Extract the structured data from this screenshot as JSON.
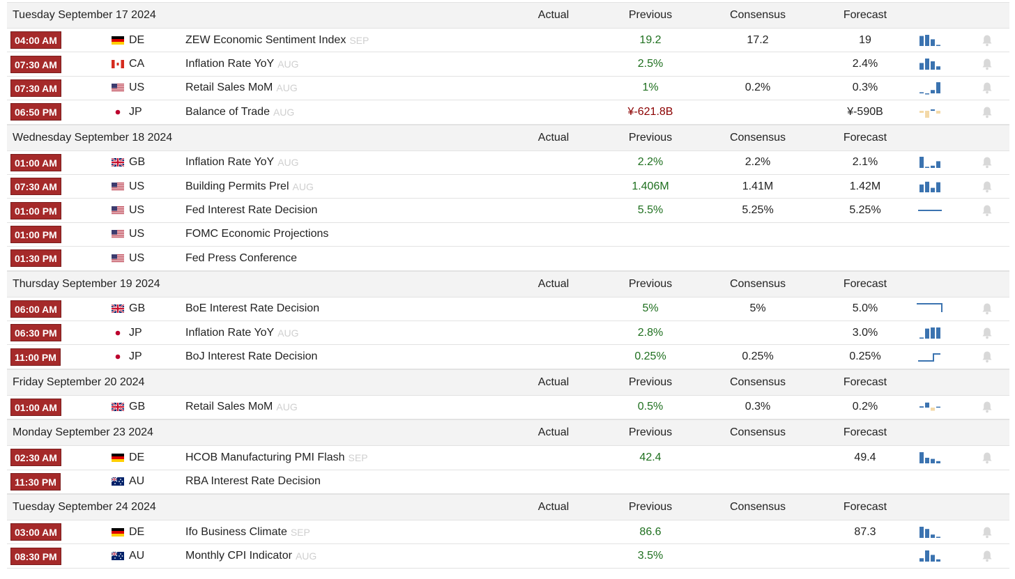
{
  "columns": {
    "actual": "Actual",
    "previous": "Previous",
    "consensus": "Consensus",
    "forecast": "Forecast"
  },
  "groups": [
    {
      "date": "Tuesday September 17 2024",
      "rows": [
        {
          "time": "04:00 AM",
          "country": "DE",
          "flag": "de",
          "event": "ZEW Economic Sentiment Index",
          "ref": "SEP",
          "previous": "19.2",
          "prev_color": "green",
          "consensus": "17.2",
          "forecast": "19",
          "spark": "bars",
          "spark_values": [
            0.9,
            1.0,
            0.6,
            0.1
          ],
          "spark_color": "#3b73b0"
        },
        {
          "time": "07:30 AM",
          "country": "CA",
          "flag": "ca",
          "event": "Inflation Rate YoY",
          "ref": "AUG",
          "previous": "2.5%",
          "prev_color": "green",
          "consensus": "",
          "forecast": "2.4%",
          "spark": "bars",
          "spark_values": [
            0.6,
            1.0,
            0.75,
            0.3
          ],
          "spark_color": "#3b73b0"
        },
        {
          "time": "07:30 AM",
          "country": "US",
          "flag": "us",
          "event": "Retail Sales MoM",
          "ref": "AUG",
          "previous": "1%",
          "prev_color": "green",
          "consensus": "0.2%",
          "forecast": "0.3%",
          "spark": "bars",
          "spark_values": [
            0.1,
            0.0,
            0.3,
            1.0
          ],
          "spark_color": "#3b73b0"
        },
        {
          "time": "06:50 PM",
          "country": "JP",
          "flag": "jp",
          "event": "Balance of Trade",
          "ref": "AUG",
          "previous": "¥-621.8B",
          "prev_color": "red",
          "consensus": "",
          "forecast": "¥-590B",
          "spark": "neg",
          "spark_values": [
            -0.3,
            -1.0,
            0.2,
            -0.4
          ],
          "spark_color": "#f3d9a8"
        }
      ]
    },
    {
      "date": "Wednesday September 18 2024",
      "rows": [
        {
          "time": "01:00 AM",
          "country": "GB",
          "flag": "gb",
          "event": "Inflation Rate YoY",
          "ref": "AUG",
          "previous": "2.2%",
          "prev_color": "green",
          "consensus": "2.2%",
          "forecast": "2.1%",
          "spark": "bars",
          "spark_values": [
            1.0,
            0.1,
            0.2,
            0.6
          ],
          "spark_color": "#3b73b0"
        },
        {
          "time": "07:30 AM",
          "country": "US",
          "flag": "us",
          "event": "Building Permits Prel",
          "ref": "AUG",
          "previous": "1.406M",
          "prev_color": "green",
          "consensus": "1.41M",
          "forecast": "1.42M",
          "spark": "bars",
          "spark_values": [
            0.7,
            0.95,
            0.4,
            0.9
          ],
          "spark_color": "#3b73b0"
        },
        {
          "time": "01:00 PM",
          "country": "US",
          "flag": "us",
          "event": "Fed Interest Rate Decision",
          "ref": "",
          "previous": "5.5%",
          "prev_color": "green",
          "consensus": "5.25%",
          "forecast": "5.25%",
          "spark": "flat",
          "spark_values": [
            0.5,
            0.5
          ],
          "spark_color": "#3b73b0"
        },
        {
          "time": "01:00 PM",
          "country": "US",
          "flag": "us",
          "event": "FOMC Economic Projections",
          "ref": "",
          "previous": "",
          "prev_color": "green",
          "consensus": "",
          "forecast": "",
          "spark": "",
          "spark_values": [],
          "spark_color": ""
        },
        {
          "time": "01:30 PM",
          "country": "US",
          "flag": "us",
          "event": "Fed Press Conference",
          "ref": "",
          "previous": "",
          "prev_color": "green",
          "consensus": "",
          "forecast": "",
          "spark": "",
          "spark_values": [],
          "spark_color": ""
        }
      ]
    },
    {
      "date": "Thursday September 19 2024",
      "rows": [
        {
          "time": "06:00 AM",
          "country": "GB",
          "flag": "gb",
          "event": "BoE Interest Rate Decision",
          "ref": "",
          "previous": "5%",
          "prev_color": "green",
          "consensus": "5%",
          "forecast": "5.0%",
          "spark": "stepdown",
          "spark_values": [
            1.0,
            1.0,
            0.2
          ],
          "spark_color": "#3b73b0"
        },
        {
          "time": "06:30 PM",
          "country": "JP",
          "flag": "jp",
          "event": "Inflation Rate YoY",
          "ref": "AUG",
          "previous": "2.8%",
          "prev_color": "green",
          "consensus": "",
          "forecast": "3.0%",
          "spark": "bars",
          "spark_values": [
            0.1,
            0.9,
            1.0,
            1.0
          ],
          "spark_color": "#3b73b0"
        },
        {
          "time": "11:00 PM",
          "country": "JP",
          "flag": "jp",
          "event": "BoJ Interest Rate Decision",
          "ref": "",
          "previous": "0.25%",
          "prev_color": "green",
          "consensus": "0.25%",
          "forecast": "0.25%",
          "spark": "stepup",
          "spark_values": [
            0.0,
            0.0,
            1.0
          ],
          "spark_color": "#3b73b0"
        }
      ]
    },
    {
      "date": "Friday September 20 2024",
      "rows": [
        {
          "time": "01:00 AM",
          "country": "GB",
          "flag": "gb",
          "event": "Retail Sales MoM",
          "ref": "AUG",
          "previous": "0.5%",
          "prev_color": "green",
          "consensus": "0.3%",
          "forecast": "0.2%",
          "spark": "mixed",
          "spark_values": [
            0.2,
            0.8,
            -0.5,
            0.15
          ],
          "spark_color": "#3b73b0"
        }
      ]
    },
    {
      "date": "Monday September 23 2024",
      "rows": [
        {
          "time": "02:30 AM",
          "country": "DE",
          "flag": "de",
          "event": "HCOB Manufacturing PMI Flash",
          "ref": "SEP",
          "previous": "42.4",
          "prev_color": "green",
          "consensus": "",
          "forecast": "49.4",
          "spark": "bars",
          "spark_values": [
            1.0,
            0.5,
            0.4,
            0.2
          ],
          "spark_color": "#3b73b0"
        },
        {
          "time": "11:30 PM",
          "country": "AU",
          "flag": "au",
          "event": "RBA Interest Rate Decision",
          "ref": "",
          "previous": "",
          "prev_color": "green",
          "consensus": "",
          "forecast": "",
          "spark": "",
          "spark_values": [],
          "spark_color": ""
        }
      ]
    },
    {
      "date": "Tuesday September 24 2024",
      "rows": [
        {
          "time": "03:00 AM",
          "country": "DE",
          "flag": "de",
          "event": "Ifo Business Climate",
          "ref": "SEP",
          "previous": "86.6",
          "prev_color": "green",
          "consensus": "",
          "forecast": "87.3",
          "spark": "bars",
          "spark_values": [
            1.0,
            0.8,
            0.3,
            0.1
          ],
          "spark_color": "#3b73b0"
        },
        {
          "time": "08:30 PM",
          "country": "AU",
          "flag": "au",
          "event": "Monthly CPI Indicator",
          "ref": "AUG",
          "previous": "3.5%",
          "prev_color": "green",
          "consensus": "",
          "forecast": "",
          "spark": "bars",
          "spark_values": [
            0.3,
            1.0,
            0.6,
            0.2
          ],
          "spark_color": "#3b73b0"
        }
      ]
    }
  ]
}
